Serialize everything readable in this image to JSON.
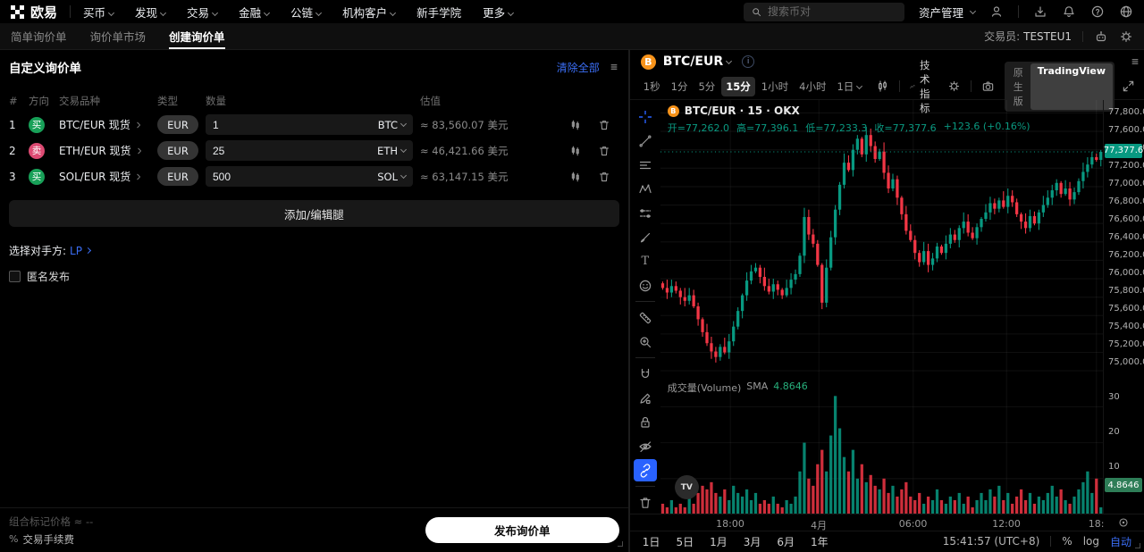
{
  "colors": {
    "accent_blue": "#3b6ef5",
    "up_green": "#089981",
    "down_red": "#f23645",
    "buy_green": "#18a058",
    "sell_red": "#dc4a72",
    "btc_orange": "#f7931a"
  },
  "nav": {
    "logo_text": "欧易",
    "items": [
      {
        "label": "买币",
        "caret": true
      },
      {
        "label": "发现",
        "caret": true
      },
      {
        "label": "交易",
        "caret": true
      },
      {
        "label": "金融",
        "caret": true
      },
      {
        "label": "公链",
        "caret": true
      },
      {
        "label": "机构客户",
        "caret": true
      },
      {
        "label": "新手学院",
        "caret": false
      },
      {
        "label": "更多",
        "caret": true
      }
    ],
    "search_placeholder": "搜索币对",
    "assets_label": "资产管理",
    "right_icons": [
      "user-icon",
      "download-icon",
      "bell-icon",
      "help-icon",
      "globe-icon"
    ]
  },
  "subnav": {
    "tabs": [
      {
        "label": "简单询价单",
        "active": false
      },
      {
        "label": "询价单市场",
        "active": false
      },
      {
        "label": "创建询价单",
        "active": true
      }
    ],
    "trader_label": "交易员:",
    "trader_id": "TESTEU1",
    "right_icons": [
      "support-icon",
      "gear-icon"
    ]
  },
  "rfq": {
    "title": "自定义询价单",
    "clear_all": "清除全部",
    "headers": [
      "#",
      "方向",
      "交易品种",
      "类型",
      "数量",
      "估值"
    ],
    "legs": [
      {
        "index": "1",
        "side": "买",
        "side_type": "buy",
        "pair": "BTC/EUR",
        "market": "现货",
        "type": "EUR",
        "qty": "1",
        "ccy": "BTC",
        "value": "≈ 83,560.07 美元"
      },
      {
        "index": "2",
        "side": "卖",
        "side_type": "sell",
        "pair": "ETH/EUR",
        "market": "现货",
        "type": "EUR",
        "qty": "25",
        "ccy": "ETH",
        "value": "≈ 46,421.66 美元"
      },
      {
        "index": "3",
        "side": "买",
        "side_type": "buy",
        "pair": "SOL/EUR",
        "market": "现货",
        "type": "EUR",
        "qty": "500",
        "ccy": "SOL",
        "value": "≈ 63,147.15 美元"
      }
    ],
    "add_button": "添加/编辑腿",
    "counterparty_label": "选择对手方:",
    "counterparty_value": "LP",
    "anonymous_label": "匿名发布",
    "mark_price_label": "组合标记价格",
    "mark_price_value": "≈ --",
    "fee_pct_symbol": "%",
    "fee_label": "交易手续费",
    "publish_button": "发布询价单"
  },
  "chart": {
    "symbol": "BTC/EUR",
    "timeframes": [
      {
        "label": "1秒",
        "active": false
      },
      {
        "label": "1分",
        "active": false
      },
      {
        "label": "5分",
        "active": false
      },
      {
        "label": "15分",
        "active": true
      },
      {
        "label": "1小时",
        "active": false
      },
      {
        "label": "4小时",
        "active": false
      },
      {
        "label": "1日",
        "active": false,
        "caret": true
      }
    ],
    "indicators_label": "技术指标",
    "version_toggle": {
      "left": "原生版",
      "right": "TradingView",
      "active": "right"
    },
    "ranges": [
      "1日",
      "5日",
      "1月",
      "3月",
      "6月",
      "1年"
    ],
    "clock": "15:41:57 (UTC+8)",
    "percent_label": "%",
    "log_label": "log",
    "auto_label": "自动"
  },
  "chart_data": {
    "type": "candlestick+volume",
    "title": "BTC/EUR · 15 · OKX",
    "legend_ohlc": {
      "open": "开=77,262.0",
      "high": "高=77,396.1",
      "low": "低=77,233.3",
      "close": "收=77,377.6",
      "change": "+123.6 (+0.16%)"
    },
    "volume_legend": {
      "title": "成交量(Volume)",
      "sma": "SMA",
      "value": "4.8646"
    },
    "last_price": 77377.6,
    "last_price_label": "77,377.6",
    "volume_sma": 4.8646,
    "volume_sma_label": "4.8646",
    "open_price": 75950,
    "closes": [
      75900,
      75850,
      75920,
      75870,
      75800,
      75760,
      75820,
      75700,
      75560,
      75420,
      75300,
      75210,
      75150,
      75260,
      75200,
      75320,
      75480,
      75650,
      75820,
      75980,
      76080,
      76120,
      76020,
      75920,
      75860,
      75940,
      75880,
      75820,
      75900,
      75990,
      76050,
      76250,
      76670,
      76480,
      76380,
      76150,
      75740,
      76120,
      76450,
      76750,
      77020,
      77260,
      77180,
      77400,
      77520,
      77350,
      77560,
      77440,
      77300,
      77380,
      77150,
      76980,
      77080,
      76880,
      76700,
      76520,
      76420,
      76280,
      76180,
      76300,
      76150,
      76220,
      76350,
      76280,
      76380,
      76480,
      76420,
      76550,
      76620,
      76500,
      76440,
      76560,
      76650,
      76720,
      76820,
      76760,
      76850,
      76780,
      76900,
      76830,
      76700,
      76620,
      76550,
      76680,
      76600,
      76720,
      76800,
      76880,
      76960,
      77040,
      76920,
      76980,
      76860,
      76940,
      77060,
      77160,
      77240,
      77320,
      77290,
      77377.6
    ],
    "volumes": [
      3,
      2,
      4,
      2,
      3,
      2,
      5,
      3,
      6,
      8,
      7,
      9,
      6,
      5,
      7,
      4,
      8,
      6,
      5,
      7,
      4,
      6,
      3,
      4,
      3,
      5,
      3,
      2,
      4,
      3,
      5,
      12,
      20,
      10,
      8,
      14,
      18,
      12,
      22,
      33,
      24,
      16,
      12,
      18,
      10,
      14,
      9,
      11,
      8,
      7,
      10,
      6,
      8,
      5,
      7,
      9,
      5,
      4,
      6,
      3,
      5,
      4,
      7,
      4,
      3,
      5,
      4,
      6,
      3,
      5,
      2,
      4,
      6,
      4,
      7,
      5,
      8,
      4,
      6,
      3,
      5,
      7,
      4,
      6,
      3,
      5,
      4,
      6,
      8,
      5,
      7,
      4,
      3,
      5,
      7,
      9,
      12,
      6,
      10,
      2
    ],
    "ylim": [
      74840,
      77940
    ],
    "y_ticks": [
      77800,
      77600,
      77400,
      77200,
      77000,
      76800,
      76600,
      76400,
      76200,
      76000,
      75800,
      75600,
      75400,
      75200,
      75000
    ],
    "y_tick_labels": [
      "77,800.0",
      "77,600.0",
      "77,400.0",
      "77,200.0",
      "77,000.0",
      "76,800.0",
      "76,600.0",
      "76,400.0",
      "76,200.0",
      "76,000.0",
      "75,800.0",
      "75,600.0",
      "75,400.0",
      "75,200.0",
      "75,000.0"
    ],
    "x_ticks": [
      {
        "label": "18:00",
        "f": 0.158
      },
      {
        "label": "4月",
        "f": 0.358
      },
      {
        "label": "06:00",
        "f": 0.571
      },
      {
        "label": "12:00",
        "f": 0.782
      },
      {
        "label": "18:",
        "f": 0.985
      }
    ],
    "volume_ticks": [
      30,
      20,
      10
    ],
    "grid": true,
    "legend_position": "top-left",
    "colors": {
      "up": "#089981",
      "down": "#f23645"
    }
  }
}
